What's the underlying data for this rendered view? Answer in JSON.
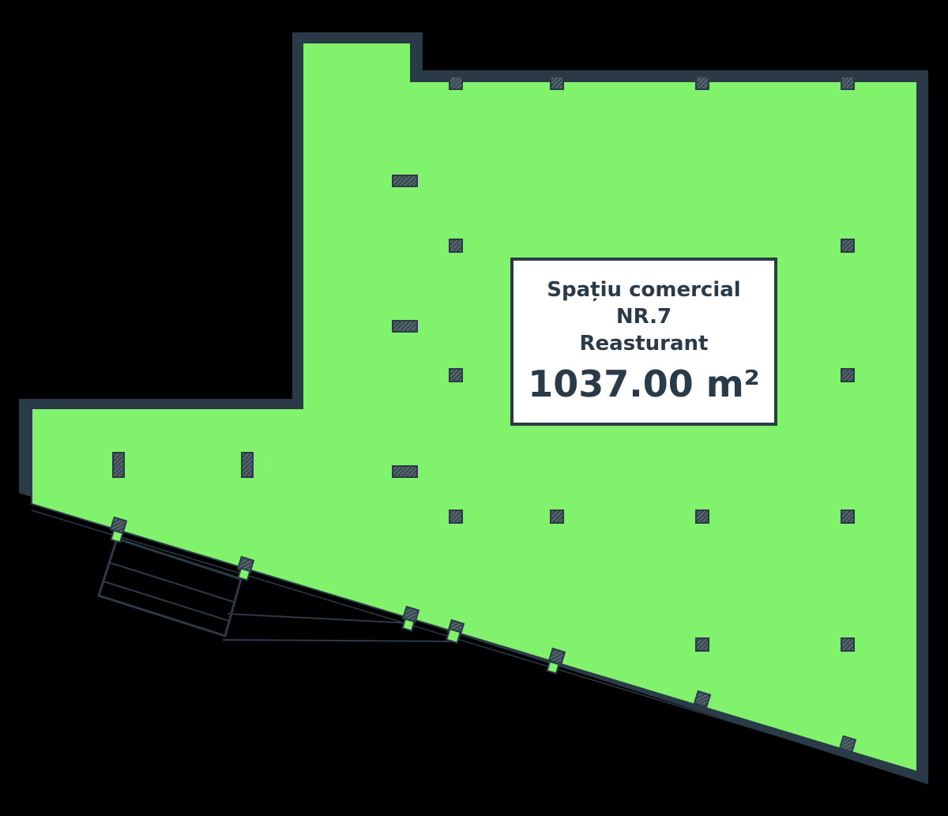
{
  "unit": {
    "type_label": "Spațiu comercial",
    "number_label": "NR.7",
    "usage_label": "Reasturant",
    "area_label": "1037.00 m²"
  },
  "colors": {
    "fill": "#80f26b",
    "wall": "#2b3a47",
    "background": "#000000",
    "label_bg": "#ffffff"
  },
  "icons": [
    "column-icon"
  ]
}
